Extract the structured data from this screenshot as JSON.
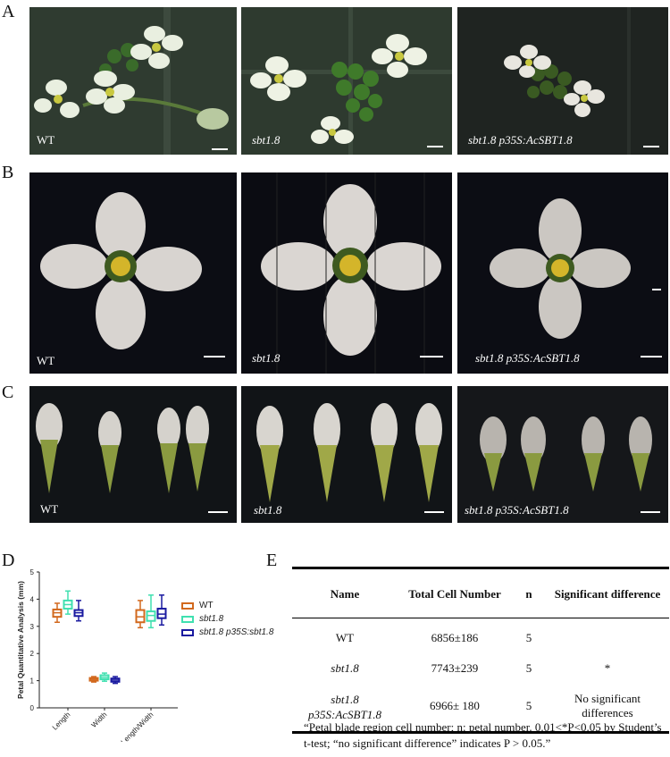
{
  "panels": {
    "A": {
      "label": "A",
      "images": [
        {
          "caption": "WT"
        },
        {
          "caption": "sbt1.8"
        },
        {
          "caption": "sbt1.8 p35S:AcSBT1.8"
        }
      ]
    },
    "B": {
      "label": "B",
      "images": [
        {
          "caption": "WT"
        },
        {
          "caption": "sbt1.8"
        },
        {
          "caption": "sbt1.8 p35S:AcSBT1.8"
        }
      ]
    },
    "C": {
      "label": "C",
      "images": [
        {
          "caption": "WT"
        },
        {
          "caption": "sbt1.8"
        },
        {
          "caption": "sbt1.8 p35S:AcSBT1.8"
        }
      ]
    },
    "D": {
      "label": "D"
    },
    "E": {
      "label": "E",
      "table": {
        "headers": [
          "Name",
          "Total Cell Number",
          "n",
          "Significant difference"
        ],
        "rows": [
          {
            "name": "WT",
            "total": "6856±186",
            "n": "5",
            "sig": ""
          },
          {
            "name": "sbt1.8",
            "total": "7743±239",
            "n": "5",
            "sig": "*"
          },
          {
            "name": "sbt1.8 p35S:AcSBT1.8",
            "total": "6966± 180",
            "n": "5",
            "sig": "No significant differences"
          }
        ]
      },
      "note": "“Petal blade region cell number; n: petal number. 0.01<*P<0.05 by Student’s t-test; “no significant difference” indicates P > 0.05.”"
    }
  },
  "chart_data": {
    "type": "box",
    "ylabel": "Petal Quantitative Analysis (mm)",
    "ylim": [
      0,
      5
    ],
    "yticks": [
      "0",
      "1",
      "2",
      "3",
      "4",
      "5"
    ],
    "categories": [
      "Length",
      "Width",
      "Length/Width"
    ],
    "series": [
      {
        "name": "WT",
        "color": "#d2691e",
        "boxes": [
          [
            3.15,
            3.35,
            3.5,
            3.62,
            3.85
          ],
          [
            0.95,
            1.0,
            1.05,
            1.1,
            1.15
          ],
          [
            2.95,
            3.15,
            3.35,
            3.6,
            3.95
          ]
        ]
      },
      {
        "name": "sbt1.8",
        "color": "#40e0b0",
        "boxes": [
          [
            3.45,
            3.65,
            3.8,
            3.95,
            4.3
          ],
          [
            0.98,
            1.05,
            1.12,
            1.2,
            1.28
          ],
          [
            2.95,
            3.2,
            3.4,
            3.55,
            4.15
          ]
        ]
      },
      {
        "name": "sbt1.8 p35S:sbt1.8",
        "color": "#1a1aa0",
        "boxes": [
          [
            3.2,
            3.38,
            3.5,
            3.6,
            3.95
          ],
          [
            0.9,
            0.96,
            1.02,
            1.08,
            1.15
          ],
          [
            3.05,
            3.3,
            3.45,
            3.65,
            4.15
          ]
        ]
      }
    ],
    "legend_position": "right",
    "grid": false
  }
}
